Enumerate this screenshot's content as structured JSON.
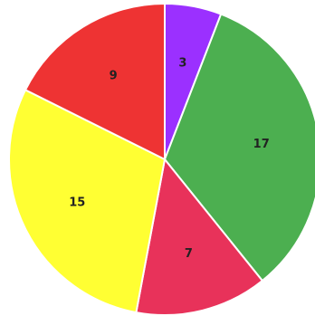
{
  "chart_data": {
    "type": "pie",
    "title": "",
    "slices": [
      {
        "label": "",
        "value": 3,
        "value_label": "3",
        "color": "#9b30ff"
      },
      {
        "label": "",
        "value": 17,
        "value_label": "17",
        "color": "#4caf50"
      },
      {
        "label": "",
        "value": 7,
        "value_label": "7",
        "color": "#e8325a"
      },
      {
        "label": "",
        "value": 15,
        "value_label": "15",
        "color": "#ffff33"
      },
      {
        "label": "",
        "value": 9,
        "value_label": "9",
        "color": "#ee3333"
      }
    ],
    "start_angle_deg": 0,
    "direction": "clockwise",
    "legend": "none",
    "slice_border_color": "#ffffff"
  }
}
